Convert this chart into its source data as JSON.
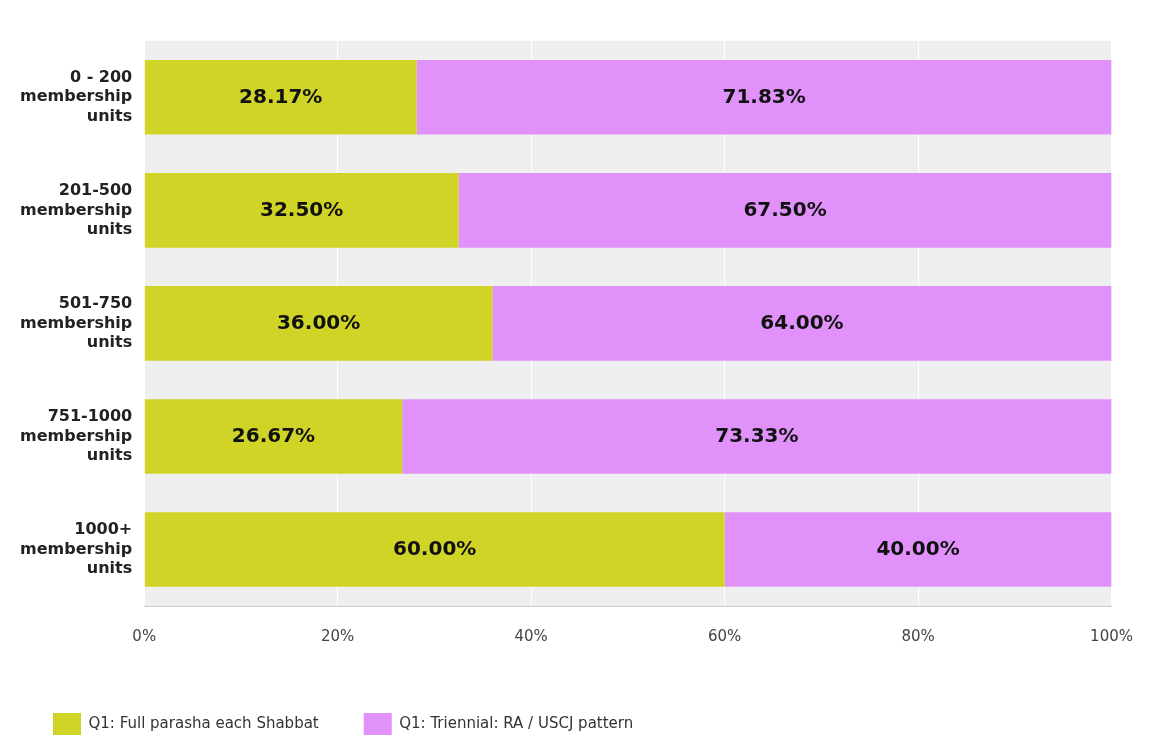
{
  "chart_data": {
    "type": "bar",
    "orientation": "horizontal",
    "stacked": true,
    "categories": [
      "0 - 200 membership units",
      "201-500 membership units",
      "501-750 membership units",
      "751-1000 membership units",
      "1000+ membership units"
    ],
    "series": [
      {
        "name": "Q1: Full parasha each Shabbat",
        "color": "#cfd426",
        "values": [
          28.17,
          32.5,
          36,
          26.67,
          60
        ],
        "value_labels": [
          "28.17%",
          "32.50%",
          "36.00%",
          "26.67%",
          "60.00%"
        ]
      },
      {
        "name": "Q1: Triennial: RA / USCJ pattern",
        "color": "#e092fa",
        "values": [
          71.83,
          67.5,
          64,
          73.33,
          40
        ],
        "value_labels": [
          "71.83%",
          "67.50%",
          "64.00%",
          "73.33%",
          "40.00%"
        ]
      }
    ],
    "xlim": [
      0,
      100
    ],
    "xticks": [
      {
        "value": 0,
        "label": "0%"
      },
      {
        "value": 20,
        "label": "20%"
      },
      {
        "value": 40,
        "label": "40%"
      },
      {
        "value": 60,
        "label": "60%"
      },
      {
        "value": 80,
        "label": "80%"
      },
      {
        "value": 100,
        "label": "100%"
      }
    ],
    "grid": "x",
    "legend": "bottom left"
  }
}
